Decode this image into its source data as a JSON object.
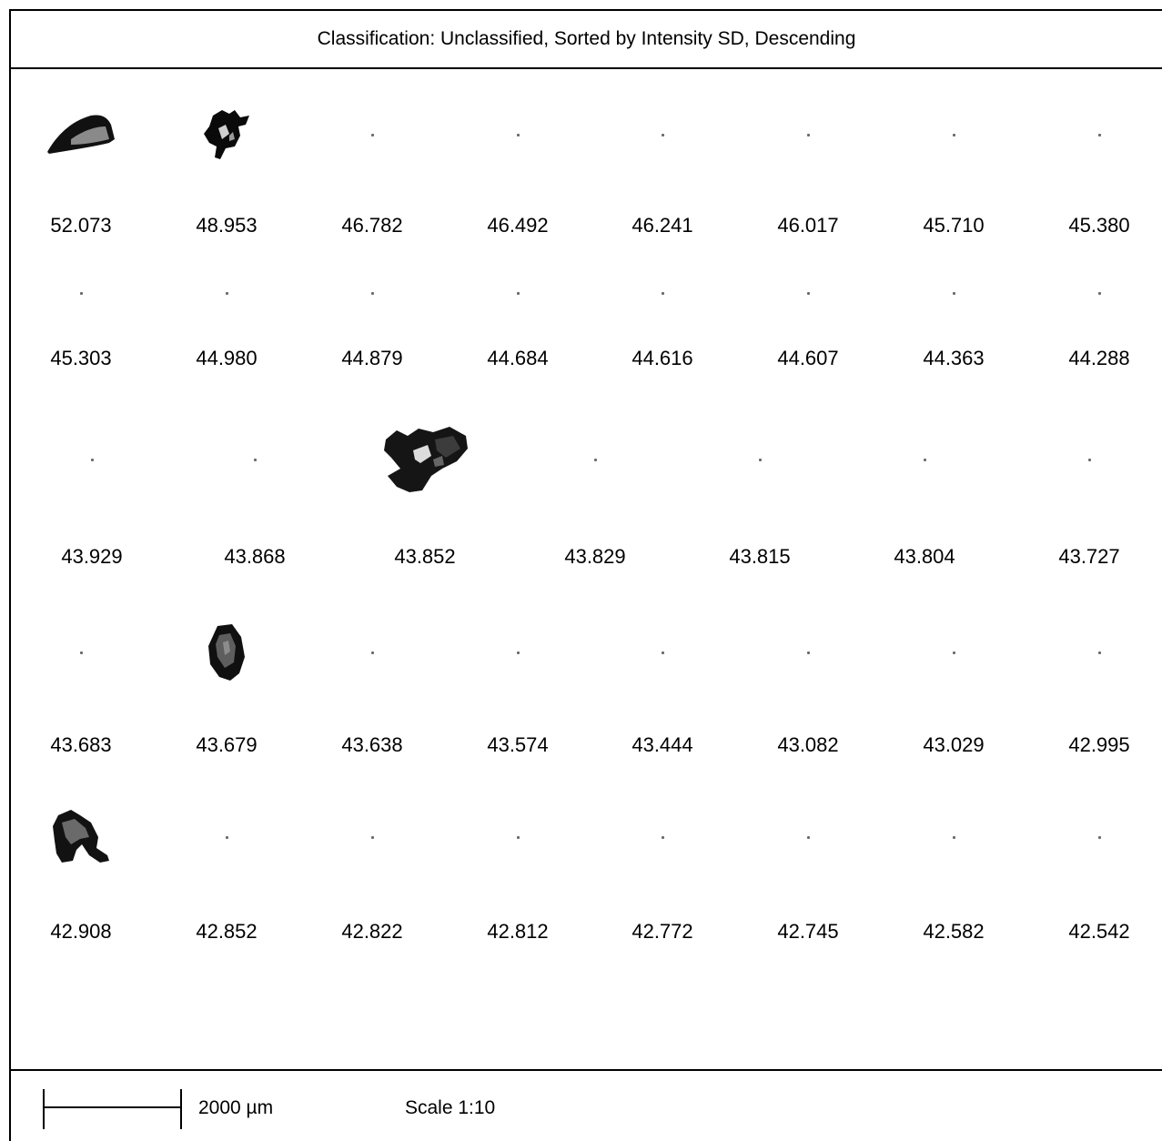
{
  "header": {
    "title": "Classification: Unclassified, Sorted by Intensity SD, Descending"
  },
  "rows": [
    {
      "values": [
        "52.073",
        "48.953",
        "46.782",
        "46.492",
        "46.241",
        "46.017",
        "45.710",
        "45.380"
      ]
    },
    {
      "values": [
        "45.303",
        "44.980",
        "44.879",
        "44.684",
        "44.616",
        "44.607",
        "44.363",
        "44.288"
      ]
    },
    {
      "values": [
        "43.929",
        "43.868",
        "43.852",
        "43.829",
        "43.815",
        "43.804",
        "43.727"
      ]
    },
    {
      "values": [
        "43.683",
        "43.679",
        "43.638",
        "43.574",
        "43.444",
        "43.082",
        "43.029",
        "42.995"
      ]
    },
    {
      "values": [
        "42.908",
        "42.852",
        "42.822",
        "42.812",
        "42.772",
        "42.745",
        "42.582",
        "42.542"
      ]
    }
  ],
  "footer": {
    "scale_length": "2000 µm",
    "scale_ratio": "Scale 1:10"
  }
}
